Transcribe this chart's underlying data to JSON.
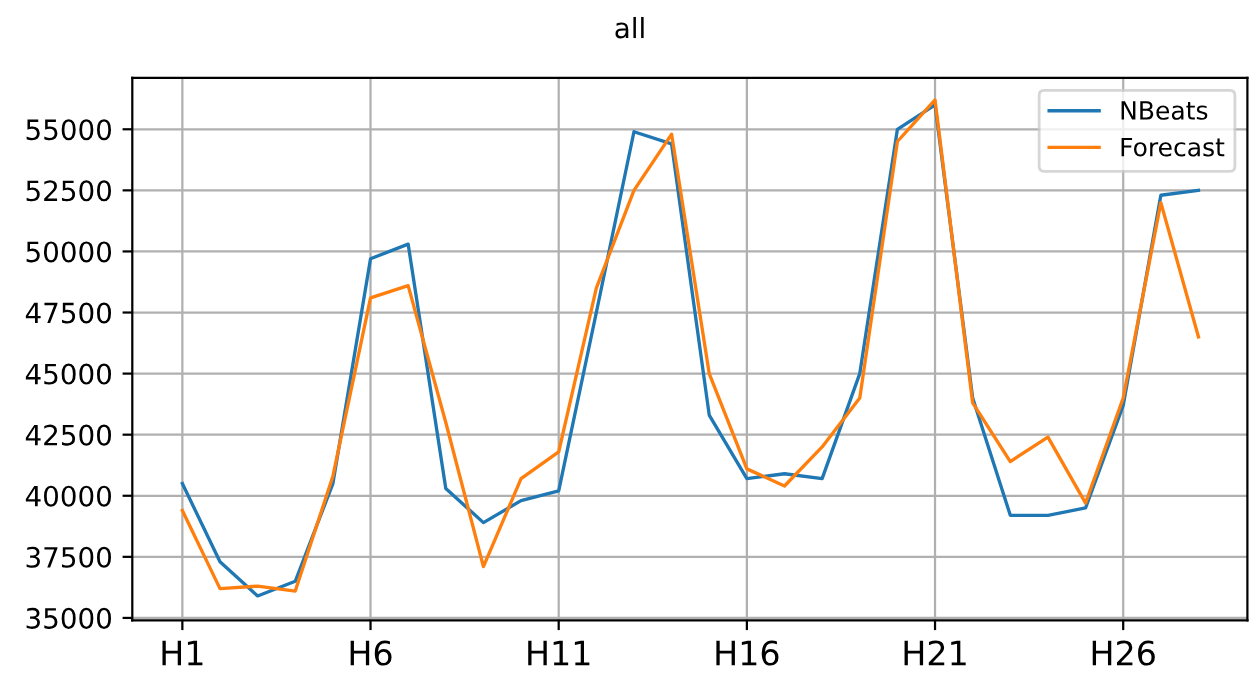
{
  "chart_data": {
    "type": "line",
    "title": "all",
    "categories": [
      "H1",
      null,
      null,
      null,
      null,
      "H6",
      null,
      null,
      null,
      null,
      "H11",
      null,
      null,
      null,
      null,
      "H16",
      null,
      null,
      null,
      null,
      "H21",
      null,
      null,
      null,
      null,
      "H26",
      null,
      null
    ],
    "series": [
      {
        "name": "NBeats",
        "color": "#1f77b4",
        "values": [
          40500,
          37300,
          35900,
          36500,
          40500,
          49700,
          50300,
          40300,
          38900,
          39800,
          40200,
          47500,
          54900,
          54400,
          43300,
          40700,
          40900,
          40700,
          45000,
          55000,
          56000,
          44000,
          39200,
          39200,
          39500,
          43700,
          52300,
          52500
        ]
      },
      {
        "name": "Forecast",
        "color": "#ff7f0e",
        "values": [
          39400,
          36200,
          36300,
          36100,
          40800,
          48100,
          48600,
          43000,
          37100,
          40700,
          41800,
          48500,
          52500,
          54800,
          45000,
          41100,
          40400,
          42000,
          44000,
          54500,
          56200,
          43800,
          41400,
          42400,
          39700,
          44000,
          52000,
          46500
        ]
      }
    ],
    "ylim": [
      34900,
      57100
    ],
    "yticks": [
      35000,
      37500,
      40000,
      42500,
      45000,
      47500,
      50000,
      52500,
      55000
    ],
    "grid": true,
    "legend": "top right"
  }
}
